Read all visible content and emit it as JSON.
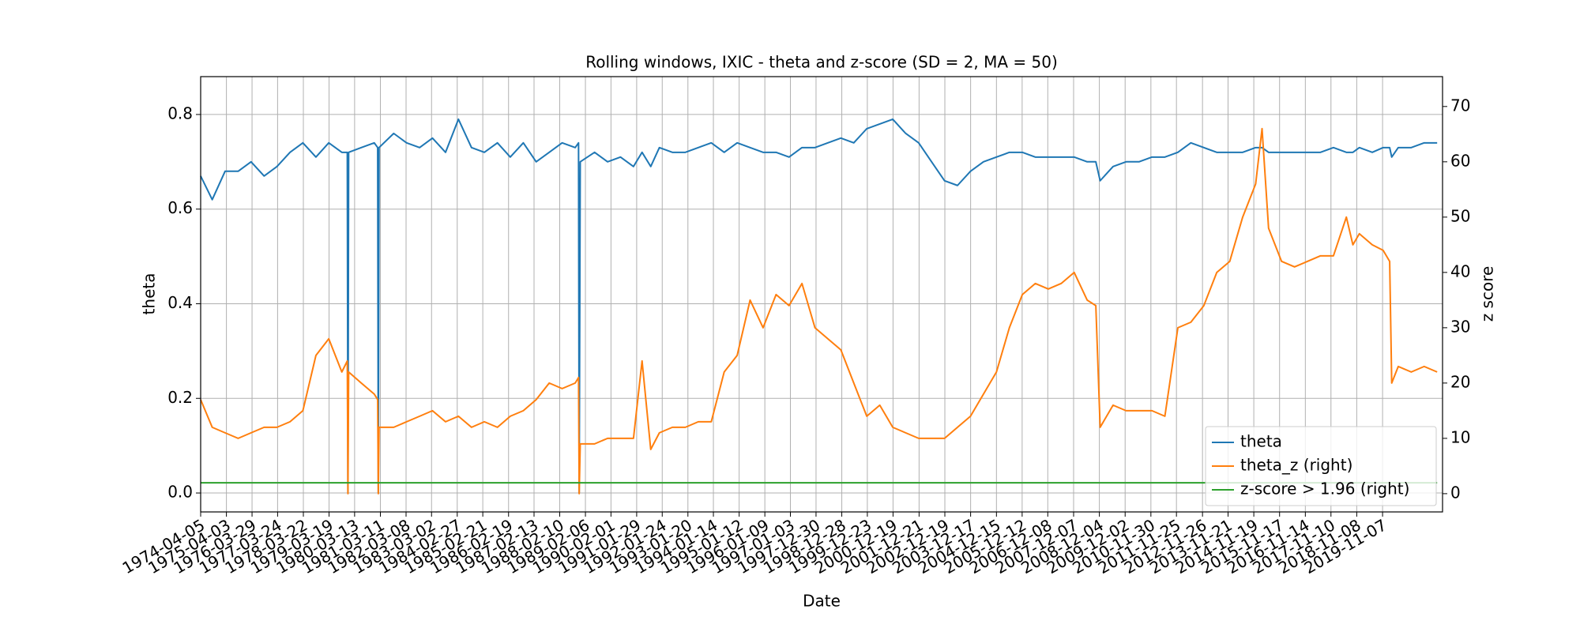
{
  "chart_data": {
    "type": "line",
    "title": "Rolling windows, IXIC - theta and z-score (SD = 2, MA = 50)",
    "xlabel": "Date",
    "ylabel": "theta",
    "y2label": "z score",
    "x": [
      "1974-04-05",
      "1974-09-15",
      "1975-03-15",
      "1975-09-15",
      "1976-03-15",
      "1976-09-15",
      "1977-03-15",
      "1977-09-15",
      "1978-03-15",
      "1978-09-15",
      "1979-03-15",
      "1979-09-15",
      "1979-12-01",
      "1979-12-10",
      "1979-12-20",
      "1980-06-15",
      "1980-12-15",
      "1981-02-01",
      "1981-02-10",
      "1981-02-20",
      "1981-09-15",
      "1982-03-15",
      "1982-09-15",
      "1983-03-15",
      "1983-09-15",
      "1984-03-15",
      "1984-09-15",
      "1985-03-15",
      "1985-09-15",
      "1986-03-15",
      "1986-09-15",
      "1987-03-15",
      "1987-09-15",
      "1988-03-15",
      "1988-09-15",
      "1988-11-01",
      "1988-11-10",
      "1988-11-25",
      "1989-06-15",
      "1989-12-15",
      "1990-06-15",
      "1990-12-15",
      "1991-04-15",
      "1991-08-15",
      "1991-12-15",
      "1992-06-15",
      "1992-12-15",
      "1993-06-15",
      "1993-12-15",
      "1994-06-15",
      "1994-12-15",
      "1995-06-15",
      "1995-12-15",
      "1996-06-15",
      "1996-12-15",
      "1997-06-15",
      "1997-12-15",
      "1998-06-15",
      "1998-12-15",
      "1999-06-15",
      "1999-12-15",
      "2000-06-15",
      "2000-12-15",
      "2001-06-15",
      "2001-12-15",
      "2002-06-15",
      "2002-12-15",
      "2003-06-15",
      "2003-12-15",
      "2004-06-15",
      "2004-12-15",
      "2005-06-15",
      "2005-12-15",
      "2006-06-15",
      "2006-12-15",
      "2007-06-15",
      "2007-12-15",
      "2008-06-15",
      "2008-10-15",
      "2008-12-15",
      "2009-06-15",
      "2009-12-15",
      "2010-06-15",
      "2010-12-15",
      "2011-06-15",
      "2011-12-15",
      "2012-06-15",
      "2012-12-15",
      "2013-06-15",
      "2013-12-15",
      "2014-06-15",
      "2014-12-15",
      "2015-03-15",
      "2015-06-15",
      "2015-12-15",
      "2016-06-15",
      "2016-12-15",
      "2017-06-15",
      "2017-12-15",
      "2018-06-15",
      "2018-09-15",
      "2018-12-15",
      "2019-06-15",
      "2019-11-15",
      "2020-02-15",
      "2020-03-15",
      "2020-06-15",
      "2020-12-15",
      "2021-06-15",
      "2021-12-15"
    ],
    "series": [
      {
        "name": "theta",
        "color": "#1f77b4",
        "axis": "y",
        "values": [
          0.67,
          0.62,
          0.68,
          0.68,
          0.7,
          0.67,
          0.69,
          0.72,
          0.74,
          0.71,
          0.74,
          0.72,
          0.72,
          0.0,
          0.72,
          0.73,
          0.74,
          0.73,
          0.0,
          0.73,
          0.76,
          0.74,
          0.73,
          0.75,
          0.72,
          0.79,
          0.73,
          0.72,
          0.74,
          0.71,
          0.74,
          0.7,
          0.72,
          0.74,
          0.73,
          0.74,
          0.0,
          0.7,
          0.72,
          0.7,
          0.71,
          0.69,
          0.72,
          0.69,
          0.73,
          0.72,
          0.72,
          0.73,
          0.74,
          0.72,
          0.74,
          0.73,
          0.72,
          0.72,
          0.71,
          0.73,
          0.73,
          0.74,
          0.75,
          0.74,
          0.77,
          0.78,
          0.79,
          0.76,
          0.74,
          0.7,
          0.66,
          0.65,
          0.68,
          0.7,
          0.71,
          0.72,
          0.72,
          0.71,
          0.71,
          0.71,
          0.71,
          0.7,
          0.7,
          0.66,
          0.69,
          0.7,
          0.7,
          0.71,
          0.71,
          0.72,
          0.74,
          0.73,
          0.72,
          0.72,
          0.72,
          0.73,
          0.73,
          0.72,
          0.72,
          0.72,
          0.72,
          0.72,
          0.73,
          0.72,
          0.72,
          0.73,
          0.72,
          0.73,
          0.73,
          0.71,
          0.73,
          0.73,
          0.74,
          0.74
        ]
      },
      {
        "name": "theta_z (right)",
        "color": "#ff7f0e",
        "axis": "y2",
        "values": [
          17,
          12,
          11,
          10,
          11,
          12,
          12,
          13,
          15,
          25,
          28,
          22,
          24,
          0,
          22,
          20,
          18,
          17,
          0,
          12,
          12,
          13,
          14,
          15,
          13,
          14,
          12,
          13,
          12,
          14,
          15,
          17,
          20,
          19,
          20,
          21,
          0,
          9,
          9,
          10,
          10,
          10,
          24,
          8,
          11,
          12,
          12,
          13,
          13,
          22,
          25,
          35,
          30,
          36,
          34,
          38,
          30,
          28,
          26,
          20,
          14,
          16,
          12,
          11,
          10,
          10,
          10,
          12,
          14,
          18,
          22,
          30,
          36,
          38,
          37,
          38,
          40,
          35,
          34,
          12,
          16,
          15,
          15,
          15,
          14,
          30,
          31,
          34,
          40,
          42,
          50,
          56,
          66,
          48,
          42,
          41,
          42,
          43,
          43,
          50,
          45,
          47,
          45,
          44,
          42,
          20,
          23,
          22,
          23,
          22
        ]
      },
      {
        "name": "z-score > 1.96 (right)",
        "color": "#2ca02c",
        "axis": "y2",
        "x": [
          "1974-04-05",
          "2021-12-15"
        ],
        "values": [
          1.96,
          1.96
        ]
      }
    ],
    "xlim": [
      "1974-04-05",
      "2022-03-01"
    ],
    "xticks": [
      "1974-04-05",
      "1975-04-03",
      "1976-03-29",
      "1977-03-24",
      "1978-03-22",
      "1979-03-19",
      "1980-03-13",
      "1981-03-11",
      "1982-03-08",
      "1983-03-02",
      "1984-02-27",
      "1985-02-21",
      "1986-02-19",
      "1987-02-13",
      "1988-02-10",
      "1989-02-06",
      "1990-02-01",
      "1991-01-29",
      "1992-01-24",
      "1993-01-20",
      "1994-01-14",
      "1995-01-12",
      "1996-01-09",
      "1997-01-03",
      "1997-12-30",
      "1998-12-28",
      "1999-12-23",
      "2000-12-19",
      "2001-12-21",
      "2002-12-19",
      "2003-12-17",
      "2004-12-15",
      "2005-12-12",
      "2006-12-08",
      "2007-12-07",
      "2008-12-04",
      "2009-12-02",
      "2010-11-30",
      "2011-11-25",
      "2012-11-26",
      "2013-11-21",
      "2014-11-19",
      "2015-11-17",
      "2016-11-14",
      "2017-11-10",
      "2018-11-08",
      "2019-11-07"
    ],
    "ylim": [
      -0.04,
      0.88
    ],
    "yticks": [
      {
        "value": 0,
        "label": "0.0"
      },
      0.2,
      0.4,
      0.6,
      0.8
    ],
    "y2lim": [
      -3.3,
      75.4
    ],
    "y2ticks": [
      0,
      10,
      20,
      30,
      40,
      50,
      60,
      70
    ],
    "grid": true,
    "legend": "lower right"
  }
}
